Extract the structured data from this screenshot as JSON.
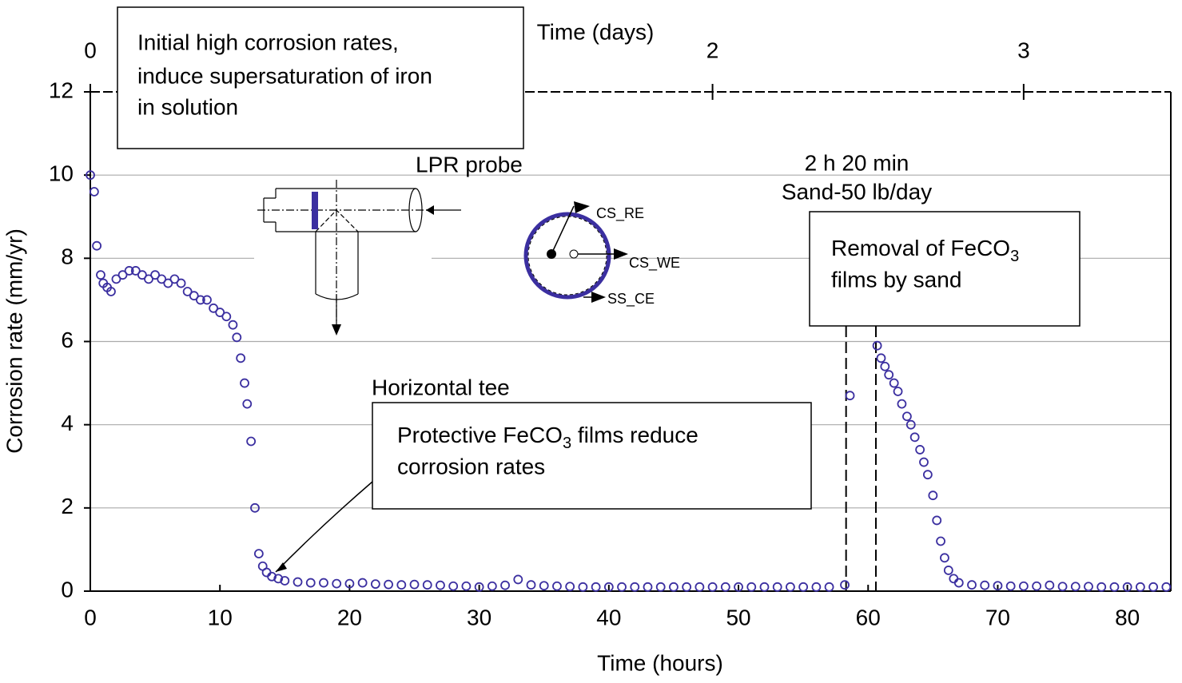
{
  "chart_data": {
    "type": "scatter",
    "title": "Time (days)",
    "x_label": "Time (hours)",
    "y_label": "Corrosion rate (mm/yr)",
    "xlim": [
      0,
      83.35
    ],
    "xticks": [
      0,
      10,
      20,
      30,
      40,
      50,
      60,
      70,
      80
    ],
    "ylim": [
      0,
      12
    ],
    "yticks": [
      0,
      2,
      4,
      6,
      8,
      10,
      12
    ],
    "x2lim": [
      0,
      3.473
    ],
    "x2ticks": [
      0,
      2,
      3
    ],
    "grid": true,
    "event_lines": [
      58.3,
      60.6
    ],
    "series": [
      {
        "color": "#3b2fa0",
        "x": [
          0,
          0.3,
          0.5,
          0.8,
          1,
          1.3,
          1.6,
          2,
          2.5,
          3,
          3.5,
          4,
          4.5,
          5,
          5.5,
          6,
          6.5,
          7,
          7.5,
          8,
          8.5,
          9,
          9.5,
          10,
          10.5,
          11,
          11.3,
          11.6,
          11.9,
          12.1,
          12.4,
          12.7,
          13,
          13.3,
          13.6,
          14,
          14.5,
          15,
          16,
          17,
          18,
          19,
          20,
          21,
          22,
          23,
          24,
          25,
          26,
          27,
          28,
          29,
          30,
          31,
          32,
          33,
          34,
          35,
          36,
          37,
          38,
          39,
          40,
          41,
          42,
          43,
          44,
          45,
          46,
          47,
          48,
          49,
          50,
          51,
          52,
          53,
          54,
          55,
          56,
          57,
          58.2,
          58.6,
          60.7,
          61,
          61.3,
          61.6,
          62,
          62.3,
          62.6,
          63,
          63.3,
          63.6,
          64,
          64.3,
          64.6,
          65,
          65.3,
          65.6,
          65.9,
          66.2,
          66.6,
          67,
          68,
          69,
          70,
          71,
          72,
          73,
          74,
          75,
          76,
          77,
          78,
          79,
          80,
          81,
          82,
          83
        ],
        "values": [
          10.0,
          9.6,
          8.3,
          7.6,
          7.4,
          7.3,
          7.2,
          7.5,
          7.6,
          7.7,
          7.7,
          7.6,
          7.5,
          7.6,
          7.5,
          7.4,
          7.5,
          7.4,
          7.2,
          7.1,
          7.0,
          7.0,
          6.8,
          6.7,
          6.6,
          6.4,
          6.1,
          5.6,
          5.0,
          4.5,
          3.6,
          2.0,
          0.9,
          0.6,
          0.45,
          0.35,
          0.3,
          0.25,
          0.22,
          0.2,
          0.2,
          0.18,
          0.18,
          0.2,
          0.17,
          0.16,
          0.15,
          0.16,
          0.15,
          0.14,
          0.12,
          0.12,
          0.1,
          0.12,
          0.14,
          0.28,
          0.15,
          0.13,
          0.12,
          0.11,
          0.1,
          0.1,
          0.1,
          0.1,
          0.1,
          0.1,
          0.1,
          0.1,
          0.1,
          0.1,
          0.1,
          0.1,
          0.1,
          0.1,
          0.1,
          0.1,
          0.1,
          0.1,
          0.1,
          0.1,
          0.15,
          4.7,
          5.9,
          5.6,
          5.4,
          5.2,
          5.0,
          4.8,
          4.5,
          4.2,
          4.0,
          3.7,
          3.4,
          3.1,
          2.8,
          2.3,
          1.7,
          1.2,
          0.8,
          0.5,
          0.3,
          0.2,
          0.15,
          0.14,
          0.13,
          0.12,
          0.12,
          0.12,
          0.14,
          0.11,
          0.11,
          0.11,
          0.1,
          0.1,
          0.1,
          0.1,
          0.1,
          0.1
        ]
      }
    ],
    "annotations": {
      "initial": [
        "Initial high corrosion rates,",
        "induce supersaturation of iron",
        "in solution"
      ],
      "removal": [
        "Removal of FeCO",
        "3",
        "films by sand"
      ],
      "protective": [
        "Protective FeCO",
        "3",
        " films reduce",
        "corrosion rates"
      ],
      "probe": "LPR probe",
      "tee": "Horizontal tee",
      "duration": "2 h 20 min",
      "sand": "Sand-50 lb/day",
      "electrodes": [
        "CS_RE",
        "CS_WE",
        "SS_CE"
      ]
    }
  }
}
